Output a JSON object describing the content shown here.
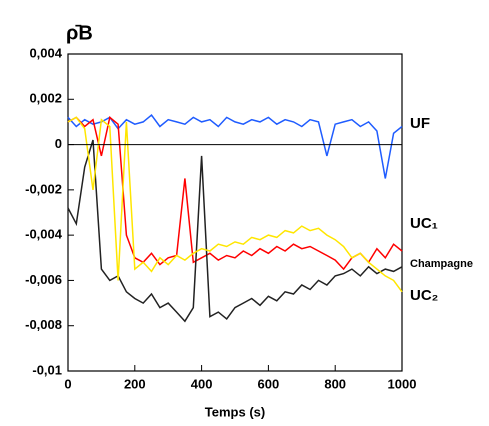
{
  "chart_data": {
    "type": "line",
    "ylabel": "ρ̄B",
    "xlabel": "Temps (s)",
    "x": [
      0,
      25,
      50,
      75,
      100,
      125,
      150,
      175,
      200,
      225,
      250,
      275,
      300,
      325,
      350,
      375,
      400,
      425,
      450,
      475,
      500,
      525,
      550,
      575,
      600,
      625,
      650,
      675,
      700,
      725,
      750,
      775,
      800,
      825,
      850,
      875,
      900,
      925,
      950,
      975,
      1000
    ],
    "series": [
      {
        "name": "UF",
        "color": "#1f5cff",
        "values": [
          0.0012,
          0.0008,
          0.0011,
          0.0009,
          0.001,
          0.0012,
          0.0007,
          0.0011,
          0.0009,
          0.001,
          0.0013,
          0.0008,
          0.0011,
          0.001,
          0.0009,
          0.0012,
          0.001,
          0.0011,
          0.0008,
          0.0012,
          0.001,
          0.0009,
          0.0011,
          0.001,
          0.0012,
          0.0009,
          0.0011,
          0.001,
          0.0008,
          0.0011,
          0.001,
          -0.0005,
          0.0009,
          0.001,
          0.0011,
          0.0008,
          0.001,
          0.0006,
          -0.0015,
          0.0005,
          0.0008
        ]
      },
      {
        "name": "UC₁",
        "color": "#ff0000",
        "values": [
          0.001,
          0.0012,
          0.0008,
          0.0011,
          -0.0005,
          0.0012,
          0.0009,
          -0.004,
          -0.005,
          -0.0052,
          -0.0048,
          -0.0053,
          -0.005,
          -0.0049,
          -0.0015,
          -0.0052,
          -0.005,
          -0.0048,
          -0.0051,
          -0.0049,
          -0.005,
          -0.0047,
          -0.0049,
          -0.0046,
          -0.0048,
          -0.0045,
          -0.0047,
          -0.0044,
          -0.0046,
          -0.0045,
          -0.0047,
          -0.0049,
          -0.0051,
          -0.0055,
          -0.005,
          -0.0048,
          -0.0052,
          -0.0046,
          -0.005,
          -0.0044,
          -0.0047
        ]
      },
      {
        "name": "Champagne",
        "color": "#222222",
        "values": [
          -0.0028,
          -0.0035,
          -0.001,
          0.0002,
          -0.0055,
          -0.006,
          -0.0058,
          -0.0065,
          -0.0068,
          -0.007,
          -0.0066,
          -0.0072,
          -0.007,
          -0.0074,
          -0.0078,
          -0.0072,
          -0.0005,
          -0.0076,
          -0.0074,
          -0.0077,
          -0.0072,
          -0.007,
          -0.0068,
          -0.0071,
          -0.0067,
          -0.0069,
          -0.0065,
          -0.0066,
          -0.0062,
          -0.0064,
          -0.006,
          -0.0062,
          -0.0058,
          -0.0057,
          -0.0055,
          -0.0058,
          -0.0054,
          -0.0057,
          -0.0055,
          -0.0056,
          -0.0054
        ]
      },
      {
        "name": "UC₂",
        "color": "#ffe600",
        "values": [
          0.001,
          0.0012,
          0.0007,
          -0.002,
          0.0011,
          0.0008,
          -0.006,
          0.001,
          -0.0055,
          -0.0052,
          -0.0056,
          -0.005,
          -0.0053,
          -0.0049,
          -0.0051,
          -0.0048,
          -0.0046,
          -0.0047,
          -0.0044,
          -0.0045,
          -0.0043,
          -0.0044,
          -0.0041,
          -0.0042,
          -0.004,
          -0.0041,
          -0.0038,
          -0.0039,
          -0.0036,
          -0.0038,
          -0.0037,
          -0.004,
          -0.0042,
          -0.0045,
          -0.005,
          -0.0048,
          -0.0052,
          -0.0055,
          -0.0058,
          -0.006,
          -0.0065
        ]
      }
    ],
    "xlim": [
      0,
      1000
    ],
    "xticks": [
      0,
      200,
      400,
      600,
      800,
      1000
    ],
    "ylim": [
      -0.01,
      0.004
    ],
    "yticks": [
      {
        "value": -0.01,
        "label": "-0,01"
      },
      {
        "value": -0.008,
        "label": "-0,008"
      },
      {
        "value": -0.006,
        "label": "-0,006"
      },
      {
        "value": -0.004,
        "label": "-0,004"
      },
      {
        "value": -0.002,
        "label": "-0,002"
      },
      0,
      {
        "value": 0.002,
        "label": "0,002"
      },
      {
        "value": 0.004,
        "label": "0,004"
      }
    ],
    "zero_line": true
  }
}
